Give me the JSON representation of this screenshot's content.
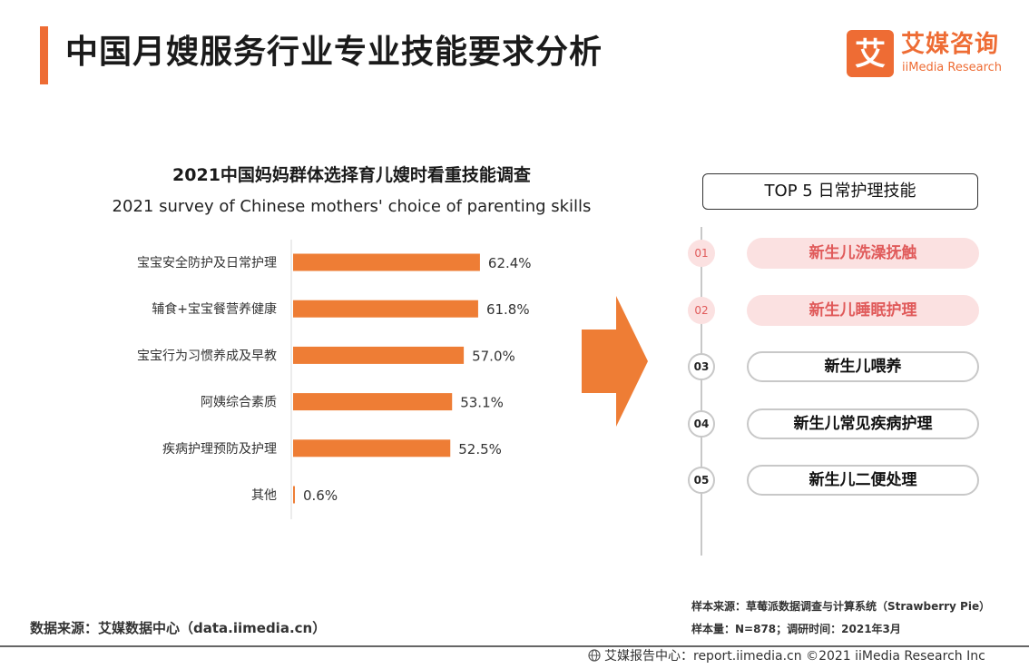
{
  "header": {
    "title": "中国月嫂服务行业专业技能要求分析"
  },
  "logo": {
    "mark_glyph": "艾",
    "cn": "艾媒咨询",
    "en": "iiMedia Research"
  },
  "chart_data": {
    "type": "bar",
    "orientation": "horizontal",
    "title": "2021中国妈妈群体选择育儿嫂时看重技能调查",
    "subtitle": "2021 survey of Chinese mothers' choice of parenting skills",
    "categories": [
      "宝宝安全防护及日常护理",
      "辅食+宝宝餐营养健康",
      "宝宝行为习惯养成及早教",
      "阿姨综合素质",
      "疾病护理预防及护理",
      "其他"
    ],
    "values": [
      62.4,
      61.8,
      57.0,
      53.1,
      52.5,
      0.6
    ],
    "value_labels": [
      "62.4%",
      "61.8%",
      "57.0%",
      "53.1%",
      "52.5%",
      "0.6%"
    ],
    "unit": "%",
    "xlim": [
      0,
      100
    ],
    "grid": false,
    "legend": "none",
    "bar_color": "#ee7d35"
  },
  "top5": {
    "header": "TOP 5 日常护理技能",
    "items": [
      {
        "num": "01",
        "label": "新生儿洗澡抚触",
        "highlight": true
      },
      {
        "num": "02",
        "label": "新生儿睡眠护理",
        "highlight": true
      },
      {
        "num": "03",
        "label": "新生儿喂养",
        "highlight": false
      },
      {
        "num": "04",
        "label": "新生儿常见疾病护理",
        "highlight": false
      },
      {
        "num": "05",
        "label": "新生儿二便处理",
        "highlight": false
      }
    ]
  },
  "colors": {
    "accent": "#ee6c34",
    "bar": "#ee7d35",
    "highlight_bg": "#fbe1e1",
    "highlight_text": "#e05a5a"
  },
  "source": {
    "data_source": "数据来源：艾媒数据中心（data.iimedia.cn）",
    "sample_source": "样本来源：草莓派数据调查与计算系统（Strawberry Pie）",
    "sample_size": "样本量：N=878；调研时间：2021年3月"
  },
  "footer": {
    "text": "艾媒报告中心：report.iimedia.cn  ©2021  iiMedia Research  Inc"
  }
}
